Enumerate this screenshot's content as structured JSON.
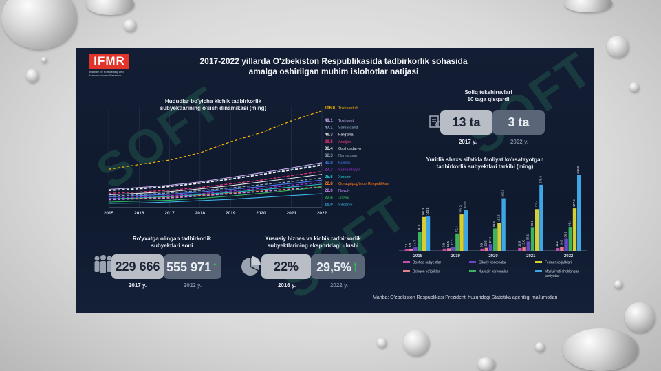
{
  "header": {
    "logo": "IFMR",
    "logo_sub": "Institute for Forecasting and Macroeconomic Research",
    "title_line1": "2017-2022 yillarda O'zbekiston Respublikasida tadbirkorlik sohasida",
    "title_line2": "amalga oshirilgan muhim islohotlar natijasi"
  },
  "watermark": "SOFT",
  "region_chart": {
    "title_line1": "Hududlar bo'yicha kichik  tadbirkorlik",
    "title_line2": "subyektlarining o'sish dinamikasi (ming)"
  },
  "tax": {
    "title_line1": "Soliq tekshiruvlari",
    "title_line2": "10 taga qisqardi",
    "v1": "13 ta",
    "v2": "3 ta",
    "y1": "2017 y.",
    "y2": "2022 y."
  },
  "registered": {
    "title_line1": "Ro'yxatga olingan tadbirkorlik",
    "title_line2": "subyektlari soni",
    "v1": "229 666",
    "v2": "555 971",
    "y1": "2017 y.",
    "y2": "2022 y."
  },
  "export": {
    "title_line1": "Xususiy biznes va kichik tadbirkorlik",
    "title_line2": "subyektlarining eksportdagi ulushi",
    "v1": "22%",
    "v2": "29,5%",
    "y1": "2016 y.",
    "y2": "2022 y."
  },
  "legal_chart": {
    "title_line1": "Yuridik shaxs sifatida faoliyat ko'rsatayotgan",
    "title_line2": "tadbirkorlik subyektlari tarkibi (ming)"
  },
  "source": "Manba: O'zbekiston Respublikasi Prezidenti huzuridagi Statistika agentligi ma'lumotlari",
  "chart_data": [
    {
      "type": "line",
      "x": [
        "2015",
        "2016",
        "2017",
        "2018",
        "2019",
        "2020",
        "2021",
        "2022"
      ],
      "series": [
        {
          "name": "Toshkent sh.",
          "color": "#f4b400",
          "dashed": true,
          "values": [
            42.0,
            47.0,
            52.0,
            60.0,
            72.0,
            82.0,
            95.0,
            106.0
          ]
        },
        {
          "name": "Toshkent",
          "color": "#c9a9e9",
          "dashed": false,
          "values": [
            20.0,
            22.0,
            24.5,
            28.0,
            33.0,
            38.0,
            43.5,
            49.1
          ]
        },
        {
          "name": "Samarqand",
          "color": "#9fb8d6",
          "dashed": true,
          "values": [
            19.0,
            21.0,
            23.5,
            27.0,
            31.5,
            36.5,
            42.0,
            47.1
          ]
        },
        {
          "name": "Farg'ona",
          "color": "#ffffff",
          "dashed": true,
          "values": [
            18.5,
            20.5,
            23.0,
            26.5,
            31.0,
            36.0,
            41.0,
            46.3
          ]
        },
        {
          "name": "Andijon",
          "color": "#e8357a",
          "dashed": true,
          "values": [
            15.5,
            17.0,
            19.0,
            22.0,
            26.0,
            30.0,
            35.0,
            39.5
          ]
        },
        {
          "name": "Qashqadaryo",
          "color": "#e4e4e4",
          "dashed": false,
          "values": [
            14.0,
            15.5,
            17.5,
            20.5,
            24.0,
            28.0,
            32.0,
            36.4
          ]
        },
        {
          "name": "Namangan",
          "color": "#8fa2bb",
          "dashed": true,
          "values": [
            12.5,
            14.0,
            16.0,
            18.5,
            21.5,
            25.0,
            28.5,
            32.3
          ]
        },
        {
          "name": "Buxoro",
          "color": "#4a7cf0",
          "dashed": false,
          "values": [
            11.5,
            13.0,
            14.5,
            17.0,
            20.0,
            23.0,
            26.5,
            30.0
          ]
        },
        {
          "name": "Surxondaryo",
          "color": "#a034d8",
          "dashed": true,
          "values": [
            10.0,
            11.5,
            13.0,
            15.0,
            18.0,
            21.0,
            24.5,
            27.3
          ]
        },
        {
          "name": "Xorazm",
          "color": "#26c0c4",
          "dashed": false,
          "values": [
            9.5,
            10.5,
            12.0,
            14.0,
            16.5,
            19.5,
            22.5,
            25.6
          ]
        },
        {
          "name": "Qoraqalpog'iston Respublikasi",
          "color": "#ff7a1a",
          "dashed": true,
          "values": [
            9.0,
            10.0,
            11.0,
            13.0,
            15.5,
            18.0,
            20.5,
            22.8
          ]
        },
        {
          "name": "Navoiy",
          "color": "#c98bf0",
          "dashed": true,
          "values": [
            8.5,
            9.5,
            10.5,
            12.5,
            15.0,
            17.5,
            20.0,
            22.6
          ]
        },
        {
          "name": "Jizzax",
          "color": "#2fb55a",
          "dashed": false,
          "values": [
            6.0,
            7.0,
            8.0,
            10.0,
            12.5,
            15.5,
            19.0,
            22.6
          ]
        },
        {
          "name": "Sirdaryo",
          "color": "#3fb7e8",
          "dashed": false,
          "values": [
            4.5,
            5.0,
            6.0,
            7.5,
            9.0,
            11.0,
            13.0,
            15.0
          ]
        }
      ]
    },
    {
      "type": "bar",
      "categories": [
        "2018",
        "2019",
        "2020",
        "2021",
        "2022"
      ],
      "series": [
        {
          "name": "Boshqa subyektlar",
          "color": "#c04fb0",
          "values": [
            7.1,
            9.0,
            8.8,
            11.6,
            11.2
          ]
        },
        {
          "name": "Dehqon xo'jaliklari",
          "color": "#e87f8f",
          "values": [
            9.0,
            10.5,
            12.5,
            15.0,
            16.0
          ]
        },
        {
          "name": "Oilaviy korxonalar",
          "color": "#6a48c8",
          "values": [
            14.7,
            17.3,
            27.9,
            39.1,
            50.1
          ]
        },
        {
          "name": "Xususiy korxonalar",
          "color": "#3db25f",
          "values": [
            80.0,
            72.4,
            93.5,
            96.6,
            98.1
          ]
        },
        {
          "name": "Fermer xo'jaliklari",
          "color": "#d6cf34",
          "values": [
            141.3,
            151.9,
            115.5,
            174.4,
            177.6
          ]
        },
        {
          "name": "Mas'uliyati cheklangan jamiyatlar",
          "color": "#3fa6e6",
          "values": [
            143.1,
            170.1,
            219.3,
            275.8,
            316.9
          ]
        }
      ]
    }
  ]
}
